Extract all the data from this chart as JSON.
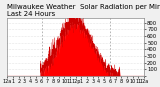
{
  "title": "Milwaukee Weather  Solar Radiation per Minute W/m²",
  "subtitle": "Last 24 Hours",
  "fill_color": "#ff0000",
  "line_color": "#cc0000",
  "bg_color": "#f0f0f0",
  "plot_bg_color": "#ffffff",
  "grid_color": "#aaaaaa",
  "ytick_labels": [
    "800",
    "700",
    "600",
    "500",
    "400",
    "300",
    "200",
    "100",
    ""
  ],
  "ytick_values": [
    800,
    700,
    600,
    500,
    400,
    300,
    200,
    100,
    0
  ],
  "ylim": [
    0,
    870
  ],
  "num_points": 1440,
  "peak_hour": 12.0,
  "peak_value": 830,
  "title_fontsize": 5.0,
  "tick_fontsize": 3.8,
  "dashed_vlines_hours": [
    6,
    12,
    18
  ],
  "solar_start_hour": 5.8,
  "solar_end_hour": 19.8,
  "x_tick_positions": [
    0,
    60,
    120,
    180,
    240,
    300,
    360,
    420,
    480,
    540,
    600,
    660,
    720,
    780,
    840,
    900,
    960,
    1020,
    1080,
    1140,
    1200,
    1260,
    1320,
    1380,
    1439
  ],
  "x_tick_labels": [
    "12a",
    "1",
    "2",
    "3",
    "4",
    "5",
    "6",
    "7",
    "8",
    "9",
    "10",
    "11",
    "12p",
    "1",
    "2",
    "3",
    "4",
    "5",
    "6",
    "7",
    "8",
    "9",
    "10",
    "11",
    "12a"
  ]
}
